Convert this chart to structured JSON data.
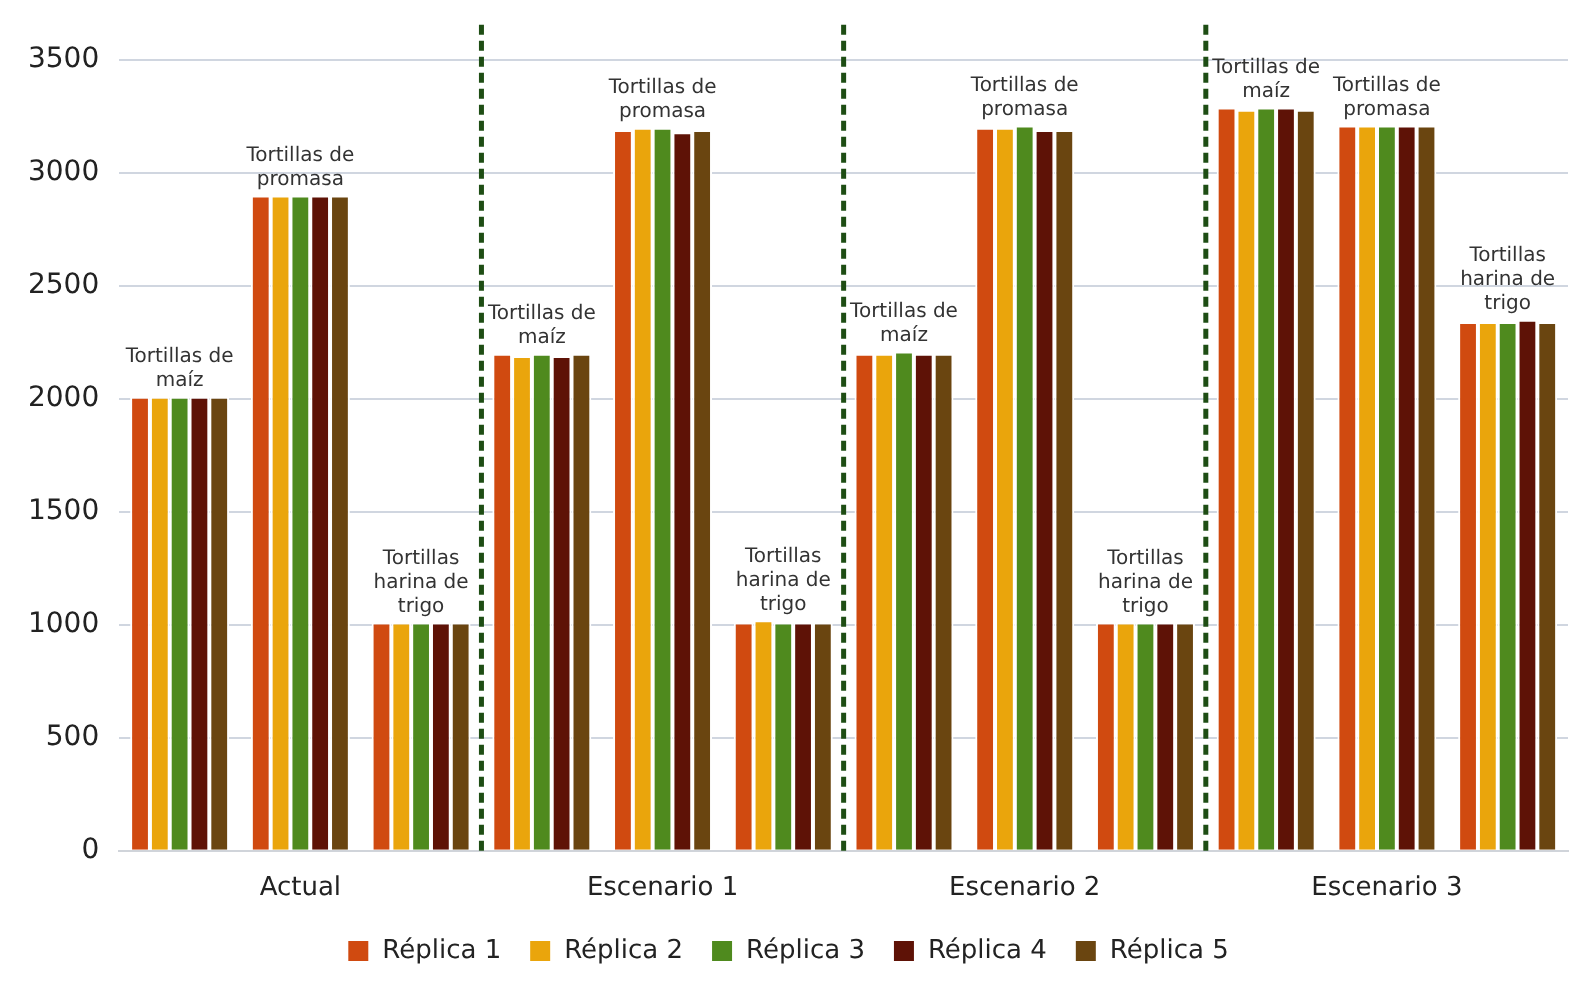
{
  "chart_data": {
    "type": "bar",
    "categories": [
      null,
      "Actual",
      null,
      null,
      "Escenario 1",
      null,
      null,
      "Escenario 2",
      null,
      null,
      "Escenario 3",
      null
    ],
    "series": [
      {
        "name": "Réplica 1",
        "color": "#d04a10",
        "values": [
          2010,
          2900,
          1010,
          2200,
          3190,
          1010,
          2200,
          3200,
          1010,
          3290,
          3210,
          2340
        ]
      },
      {
        "name": "Réplica 2",
        "color": "#eaa50c",
        "values": [
          2010,
          2900,
          1010,
          2190,
          3200,
          1020,
          2200,
          3200,
          1010,
          3280,
          3210,
          2340
        ]
      },
      {
        "name": "Réplica 3",
        "color": "#4f8a1e",
        "values": [
          2010,
          2900,
          1010,
          2200,
          3200,
          1010,
          2210,
          3210,
          1010,
          3290,
          3210,
          2340
        ]
      },
      {
        "name": "Réplica 4",
        "color": "#5e1206",
        "values": [
          2010,
          2900,
          1010,
          2190,
          3180,
          1010,
          2200,
          3190,
          1010,
          3290,
          3210,
          2350
        ]
      },
      {
        "name": "Réplica 5",
        "color": "#6a4510",
        "values": [
          2010,
          2900,
          1010,
          2200,
          3190,
          1010,
          2200,
          3190,
          1010,
          3280,
          3210,
          2340
        ]
      }
    ],
    "annotations": [
      "Tortillas de maíz",
      "Tortillas de promasa",
      "Tortillas harina de trigo",
      "Tortillas de maíz",
      "Tortillas de promasa",
      "Tortillas harina de trigo",
      "Tortillas de maíz",
      "Tortillas de promasa",
      "Tortillas harina de trigo",
      "Tortillas de maíz",
      "Tortillas de promasa",
      "Tortillas harina de trigo"
    ],
    "ylim": [
      0,
      3500
    ],
    "yticks": [
      0,
      500,
      1000,
      1500,
      2000,
      2500,
      3000,
      3500
    ],
    "grid": "y",
    "legend": "bottom"
  }
}
